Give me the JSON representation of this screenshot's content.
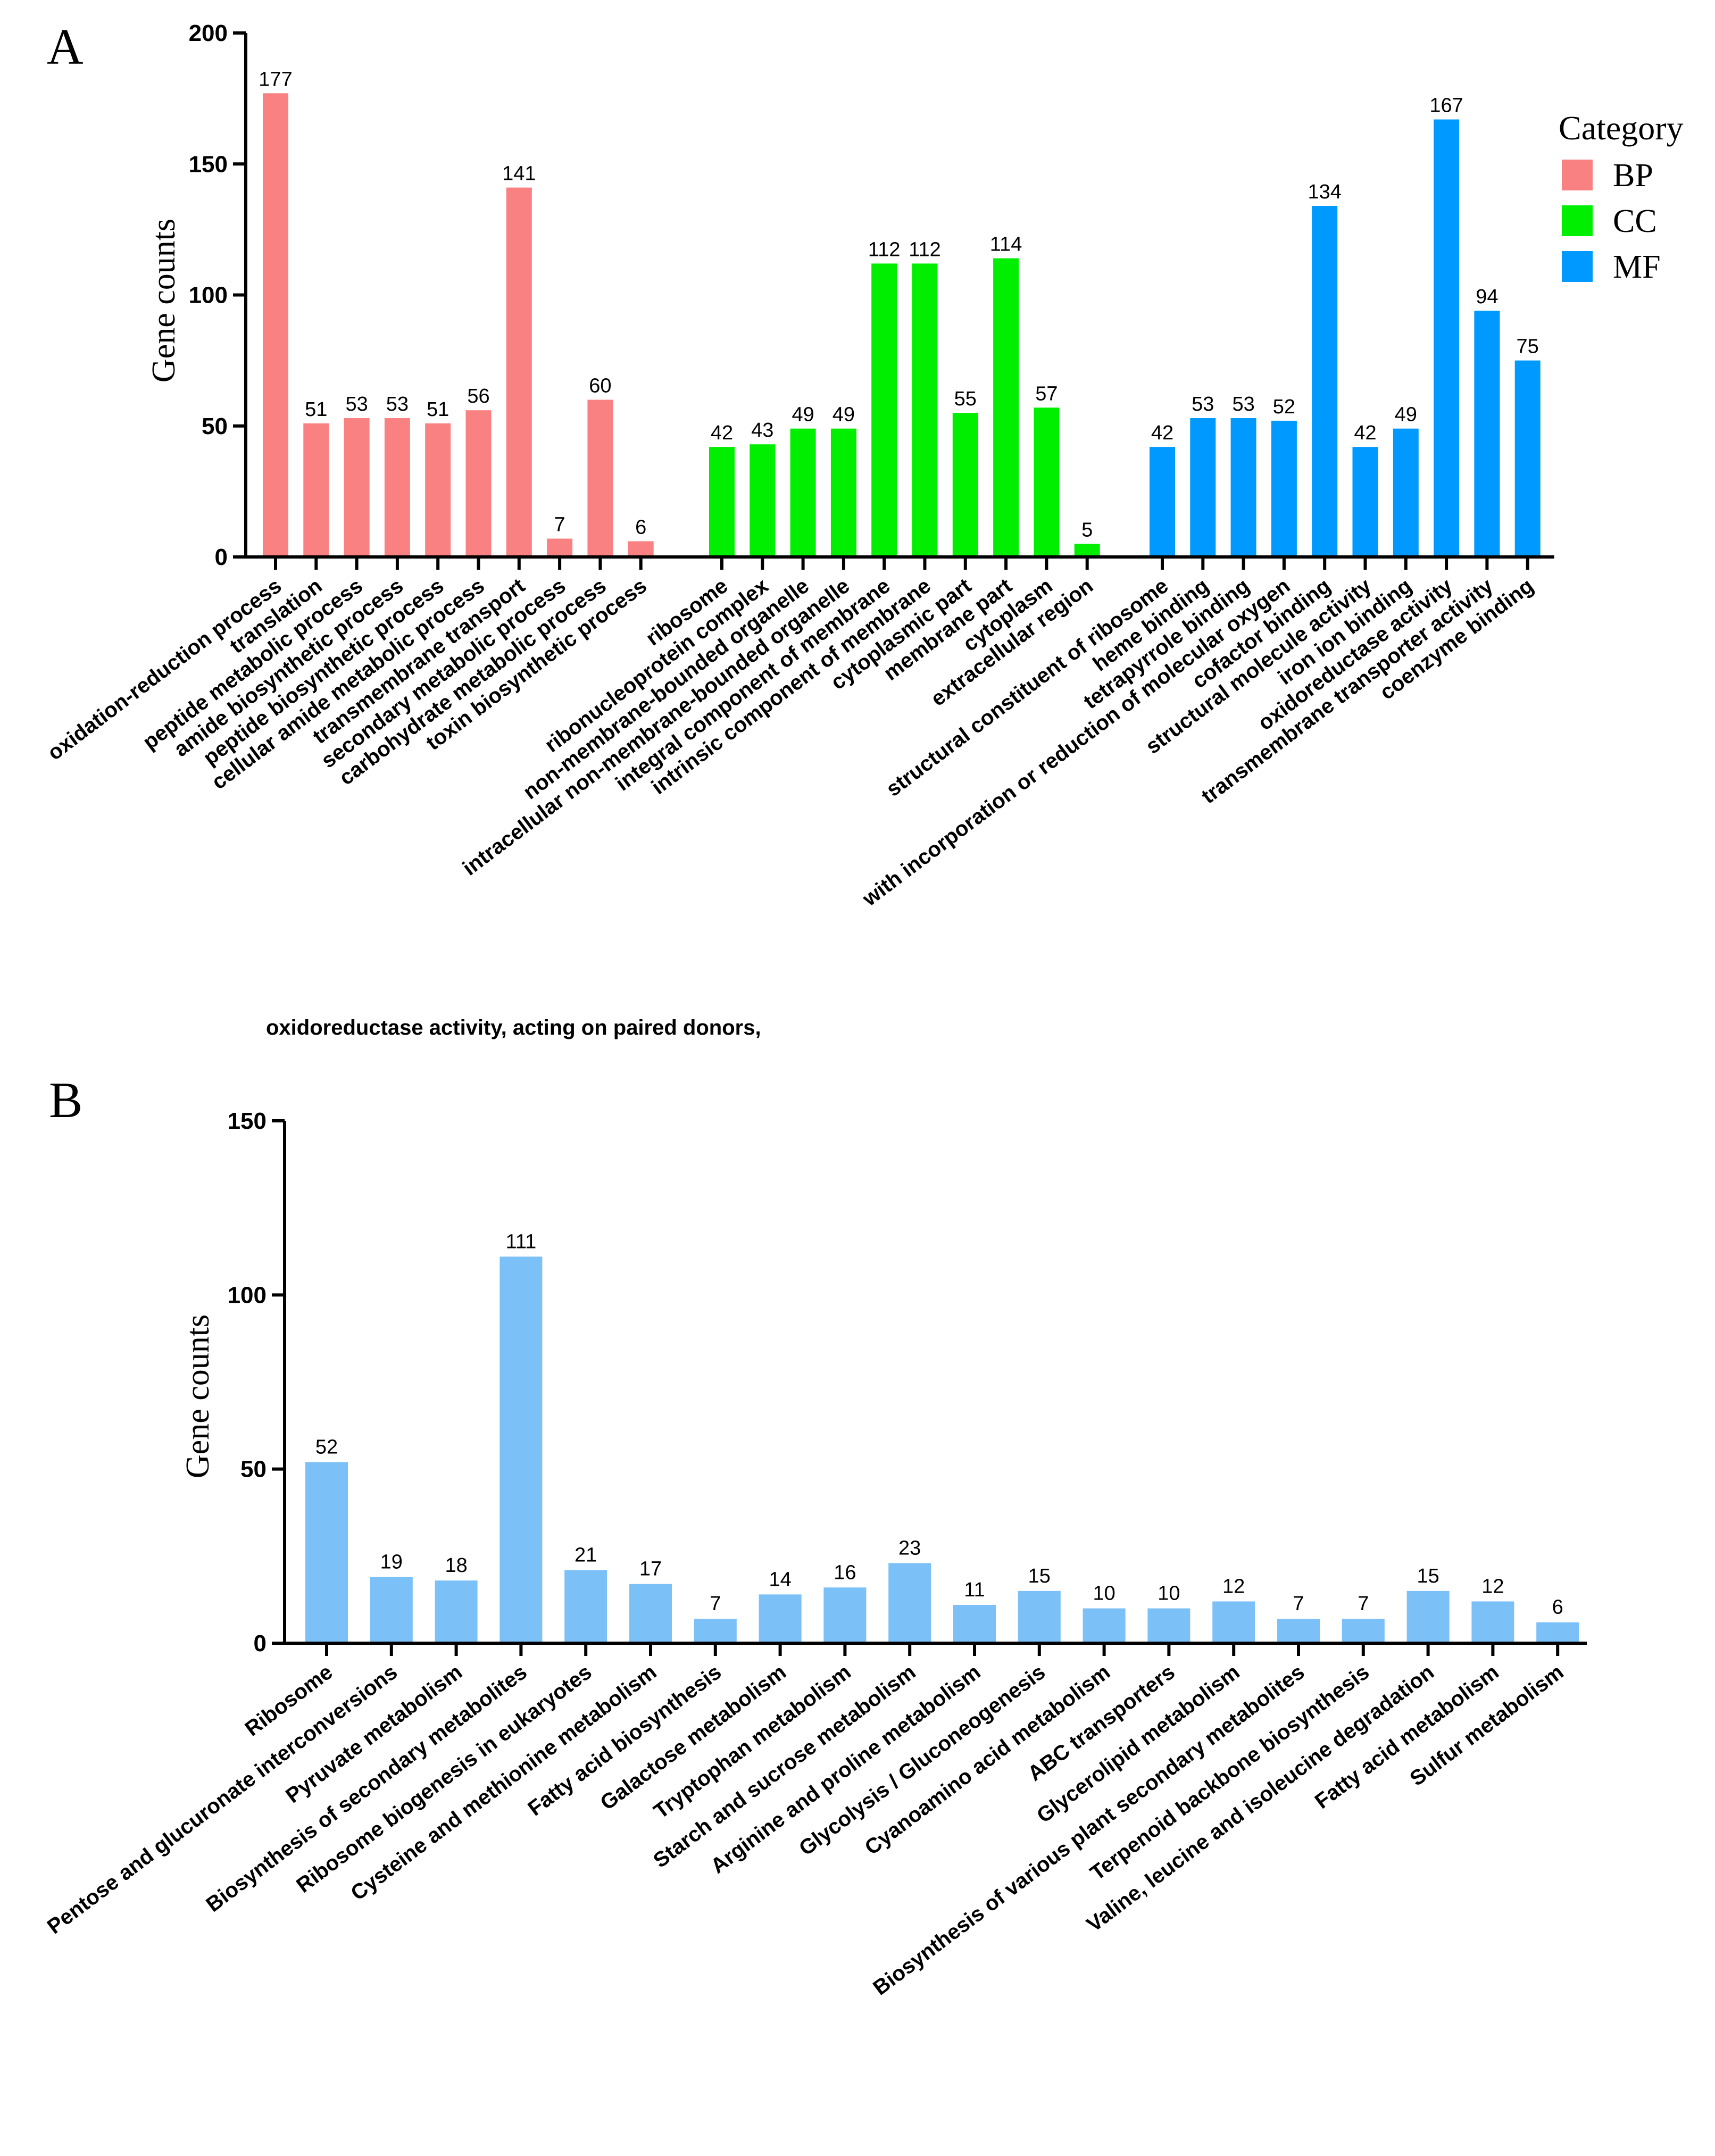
{
  "chart_data": [
    {
      "type": "bar",
      "panel": "A",
      "ylabel": "Gene counts",
      "ylim": [
        0,
        200
      ],
      "yticks": [
        0,
        50,
        100,
        150,
        200
      ],
      "legend": {
        "title": "Category",
        "placement": "top-right",
        "entries": [
          {
            "name": "BP",
            "color": "#f98181"
          },
          {
            "name": "CC",
            "color": "#00ee00"
          },
          {
            "name": "MF",
            "color": "#0099ff"
          }
        ]
      },
      "groups": [
        {
          "name": "BP",
          "color": "#f98181",
          "categories": [
            "oxidation-reduction process",
            "translation",
            "peptide metabolic process",
            "amide biosynthetic process",
            "peptide biosynthetic process",
            "cellular amide metabolic process",
            "transmembrane transport",
            "secondary metabolic process",
            "carbohydrate metabolic process",
            "toxin biosynthetic process"
          ],
          "values": [
            177,
            51,
            53,
            53,
            51,
            56,
            141,
            7,
            60,
            6
          ]
        },
        {
          "name": "CC",
          "color": "#00ee00",
          "categories": [
            "ribosome",
            "ribonucleoprotein complex",
            "non-membrane-bounded organelle",
            "intracellular non-membrane-bounded organelle",
            "integral component of membrane",
            "intrinsic component of membrane",
            "cytoplasmic part",
            "membrane part",
            "cytoplasm",
            "extracellular region"
          ],
          "values": [
            42,
            43,
            49,
            49,
            112,
            112,
            55,
            114,
            57,
            5
          ]
        },
        {
          "name": "MF",
          "color": "#0099ff",
          "categories": [
            "structural constituent of ribosome",
            "heme binding",
            "tetrapyrrole binding",
            "oxidoreductase activity, acting on paired donors, with incorporation or reduction of molecular oxygen",
            "cofactor binding",
            "structural molecule activity",
            "iron ion binding",
            "oxidoreductase activity",
            "transmembrane transporter activity",
            "coenzyme binding"
          ],
          "values": [
            42,
            53,
            53,
            52,
            134,
            42,
            49,
            167,
            94,
            75
          ]
        }
      ]
    },
    {
      "type": "bar",
      "panel": "B",
      "ylabel": "Gene counts",
      "ylim": [
        0,
        150
      ],
      "yticks": [
        0,
        50,
        100,
        150
      ],
      "color": "#7cc0f8",
      "categories": [
        "Ribosome",
        "Pentose and glucuronate interconversions",
        "Pyruvate metabolism",
        "Biosynthesis of secondary metabolites",
        "Ribosome biogenesis in eukaryotes",
        "Cysteine and methionine metabolism",
        "Fatty acid biosynthesis",
        "Galactose metabolism",
        "Tryptophan metabolism",
        "Starch and sucrose metabolism",
        "Arginine and proline metabolism",
        "Glycolysis / Gluconeogenesis",
        "Cyanoamino acid metabolism",
        "ABC transporters",
        "Glycerolipid metabolism",
        "Biosynthesis of various plant secondary metabolites",
        "Terpenoid backbone biosynthesis",
        "Valine, leucine and isoleucine degradation",
        "Fatty acid metabolism",
        "Sulfur metabolism"
      ],
      "values": [
        52,
        19,
        18,
        111,
        21,
        17,
        7,
        14,
        16,
        23,
        11,
        15,
        10,
        10,
        12,
        7,
        7,
        15,
        12,
        6
      ]
    }
  ]
}
